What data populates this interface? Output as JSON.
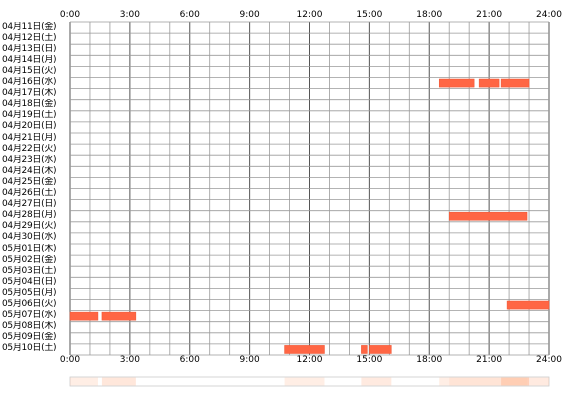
{
  "timeline": {
    "hour_ticks": [
      "0:00",
      "3:00",
      "6:00",
      "9:00",
      "12:00",
      "15:00",
      "18:00",
      "21:00",
      "24:00"
    ],
    "rows": [
      {
        "date": "04月11日(金)",
        "segments": []
      },
      {
        "date": "04月12日(土)",
        "segments": []
      },
      {
        "date": "04月13日(日)",
        "segments": []
      },
      {
        "date": "04月14日(月)",
        "segments": []
      },
      {
        "date": "04月15日(火)",
        "segments": []
      },
      {
        "date": "04月16日(水)",
        "segments": [
          [
            18.5,
            20.25
          ],
          [
            20.5,
            21.5
          ],
          [
            21.6,
            23.0
          ]
        ]
      },
      {
        "date": "04月17日(木)",
        "segments": []
      },
      {
        "date": "04月18日(金)",
        "segments": []
      },
      {
        "date": "04月19日(土)",
        "segments": []
      },
      {
        "date": "04月20日(日)",
        "segments": []
      },
      {
        "date": "04月21日(月)",
        "segments": []
      },
      {
        "date": "04月22日(火)",
        "segments": []
      },
      {
        "date": "04月23日(水)",
        "segments": []
      },
      {
        "date": "04月24日(木)",
        "segments": []
      },
      {
        "date": "04月25日(金)",
        "segments": []
      },
      {
        "date": "04月26日(土)",
        "segments": []
      },
      {
        "date": "04月27日(日)",
        "segments": []
      },
      {
        "date": "04月28日(月)",
        "segments": [
          [
            19.0,
            22.9
          ]
        ]
      },
      {
        "date": "04月29日(火)",
        "segments": []
      },
      {
        "date": "04月30日(水)",
        "segments": []
      },
      {
        "date": "05月01日(木)",
        "segments": []
      },
      {
        "date": "05月02日(金)",
        "segments": []
      },
      {
        "date": "05月03日(土)",
        "segments": []
      },
      {
        "date": "05月04日(日)",
        "segments": []
      },
      {
        "date": "05月05日(月)",
        "segments": []
      },
      {
        "date": "05月06日(火)",
        "segments": [
          [
            21.9,
            24.0
          ]
        ]
      },
      {
        "date": "05月07日(水)",
        "segments": [
          [
            0.0,
            1.4
          ],
          [
            1.6,
            3.3
          ]
        ]
      },
      {
        "date": "05月08日(木)",
        "segments": []
      },
      {
        "date": "05月09日(金)",
        "segments": []
      },
      {
        "date": "05月10日(土)",
        "segments": [
          [
            10.75,
            12.75
          ],
          [
            14.6,
            14.9
          ],
          [
            15.0,
            16.1
          ]
        ]
      }
    ],
    "summary_bands": [
      {
        "start": 0.0,
        "end": 1.4,
        "level": 0.25
      },
      {
        "start": 1.6,
        "end": 3.3,
        "level": 0.35
      },
      {
        "start": 10.75,
        "end": 12.75,
        "level": 0.25
      },
      {
        "start": 14.6,
        "end": 16.1,
        "level": 0.3
      },
      {
        "start": 18.5,
        "end": 19.0,
        "level": 0.25
      },
      {
        "start": 19.0,
        "end": 22.9,
        "level": 0.4
      },
      {
        "start": 21.6,
        "end": 23.0,
        "level": 0.55
      },
      {
        "start": 22.9,
        "end": 24.0,
        "level": 0.3
      }
    ],
    "colors": {
      "bar": "#ff6644",
      "bar_edge": "#ee5533",
      "grid": "#9a9a9a",
      "frame": "#555555",
      "band": "#ffbb99"
    }
  }
}
